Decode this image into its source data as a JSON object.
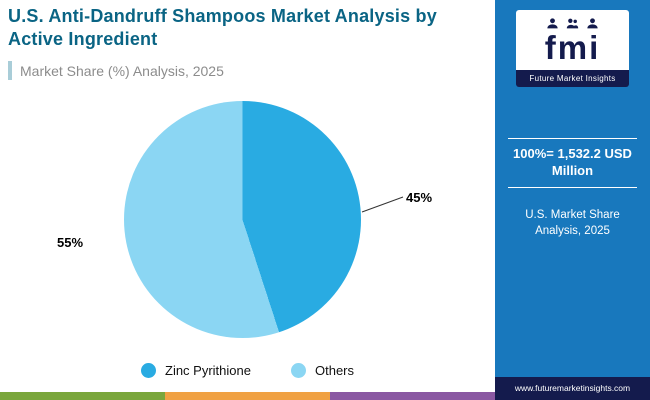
{
  "header": {
    "title": "U.S. Anti-Dandruff Shampoos Market Analysis by Active Ingredient",
    "subtitle": "Market Share (%) Analysis, 2025"
  },
  "sidebar": {
    "logo_text": "fmi",
    "logo_caption": "Future Market Insights",
    "stat_headline": "100%= 1,532.2 USD Million",
    "stat_caption": "U.S. Market Share Analysis, 2025",
    "website": "www.futuremarketinsights.com",
    "background_color": "#1878bd",
    "navy_color": "#141b4d"
  },
  "chart_data": {
    "type": "pie",
    "title": "U.S. Anti-Dandruff Shampoos Market Analysis by Active Ingredient",
    "subtitle": "Market Share (%) Analysis, 2025",
    "categories": [
      "Zinc Pyrithione",
      "Others"
    ],
    "values": [
      45,
      55
    ],
    "labels": [
      "45%",
      "55%"
    ],
    "colors": [
      "#29abe2",
      "#8bd6f3"
    ],
    "legend_position": "bottom",
    "annotation": "100%= 1,532.2 USD Million"
  },
  "footer": {
    "stripe_colors": [
      "#7aa63c",
      "#f0a143",
      "#8a58a2"
    ]
  }
}
